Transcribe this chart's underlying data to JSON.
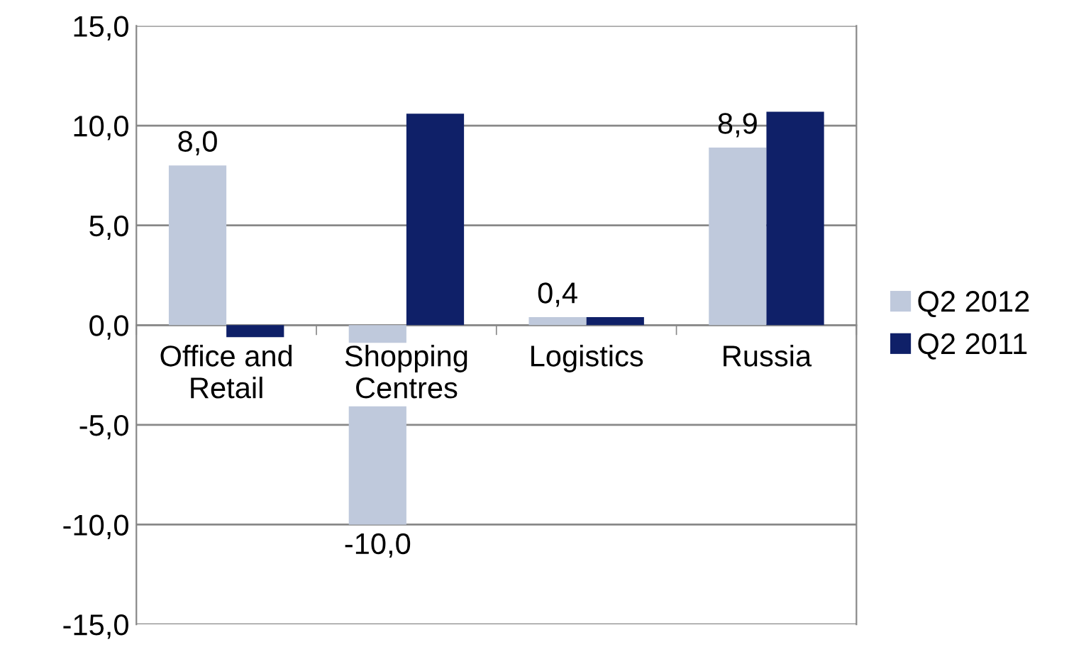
{
  "chart_data": {
    "type": "bar",
    "categories": [
      "Office and\nRetail",
      "Shopping\nCentres",
      "Logistics",
      "Russia"
    ],
    "series": [
      {
        "name": "Q2 2012",
        "color": "#bfc9dc",
        "values": [
          8.0,
          -10.0,
          0.4,
          8.9
        ],
        "value_labels": [
          "8,0",
          "-10,0",
          "0,4",
          "8,9"
        ]
      },
      {
        "name": "Q2 2011",
        "color": "#0f2068",
        "values": [
          -0.6,
          10.6,
          0.4,
          10.7
        ]
      }
    ],
    "ylim": [
      -15,
      15
    ],
    "yticks": [
      {
        "value": -15,
        "label": "-15,0"
      },
      {
        "value": -10,
        "label": "-10,0"
      },
      {
        "value": -5,
        "label": "-5,0"
      },
      {
        "value": 0,
        "label": "0,0"
      },
      {
        "value": 5,
        "label": "5,0"
      },
      {
        "value": 10,
        "label": "10,0"
      },
      {
        "value": 15,
        "label": "15,0"
      }
    ],
    "grid": "y",
    "legend": "right"
  }
}
